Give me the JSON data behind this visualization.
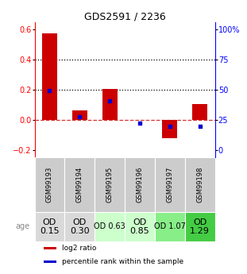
{
  "title": "GDS2591 / 2236",
  "samples": [
    "GSM99193",
    "GSM99194",
    "GSM99195",
    "GSM99196",
    "GSM99197",
    "GSM99198"
  ],
  "log2_ratio": [
    0.575,
    0.065,
    0.205,
    0.0,
    -0.12,
    0.105
  ],
  "percentile_rank": [
    49.5,
    27.5,
    40.5,
    22.0,
    19.5,
    20.0
  ],
  "age_labels": [
    "OD\n0.15",
    "OD\n0.30",
    "OD 0.63",
    "OD\n0.85",
    "OD 1.07",
    "OD\n1.29"
  ],
  "age_colors": [
    "#d9d9d9",
    "#d9d9d9",
    "#ccffcc",
    "#ccffcc",
    "#88ee88",
    "#44cc44"
  ],
  "age_fontsize": [
    8,
    8,
    7,
    8,
    7,
    8
  ],
  "ylim_left": [
    -0.25,
    0.65
  ],
  "ylim_right": [
    -6.25,
    106.25
  ],
  "yticks_left": [
    -0.2,
    0.0,
    0.2,
    0.4,
    0.6
  ],
  "yticks_right": [
    0,
    25,
    50,
    75,
    100
  ],
  "ytick_labels_right": [
    "0",
    "25",
    "50",
    "75",
    "100%"
  ],
  "bar_color": "#cc0000",
  "dot_color": "#0000cc",
  "dotted_line_color": "#000000",
  "zero_line_color": "#cc0000",
  "background_color": "#ffffff",
  "plot_bg_color": "#ffffff",
  "sample_bg_color": "#cccccc",
  "legend_red_label": "log2 ratio",
  "legend_blue_label": "percentile rank within the sample"
}
